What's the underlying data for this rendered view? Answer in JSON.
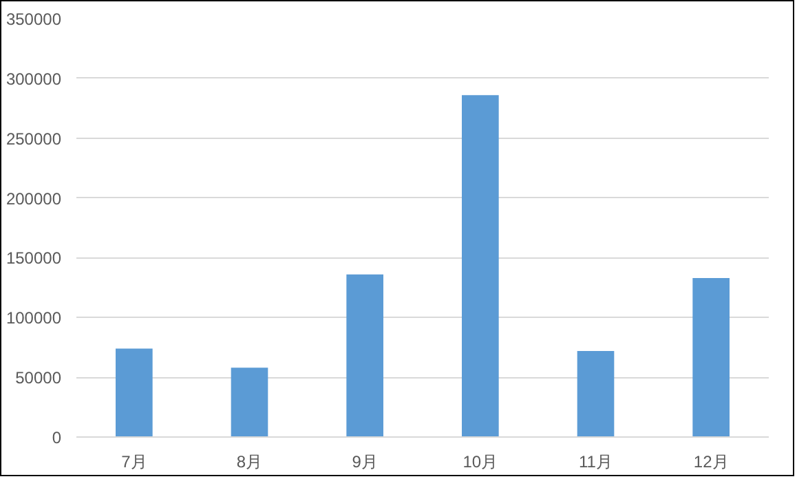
{
  "chart_data": {
    "type": "bar",
    "categories": [
      "7月",
      "8月",
      "9月",
      "10月",
      "11月",
      "12月"
    ],
    "values": [
      74000,
      58000,
      136000,
      286000,
      72000,
      133000
    ],
    "color": "#5b9bd5",
    "ylim": [
      0,
      350000
    ],
    "yticks": [
      0,
      50000,
      100000,
      150000,
      200000,
      250000,
      300000,
      350000
    ],
    "grid": "y"
  }
}
